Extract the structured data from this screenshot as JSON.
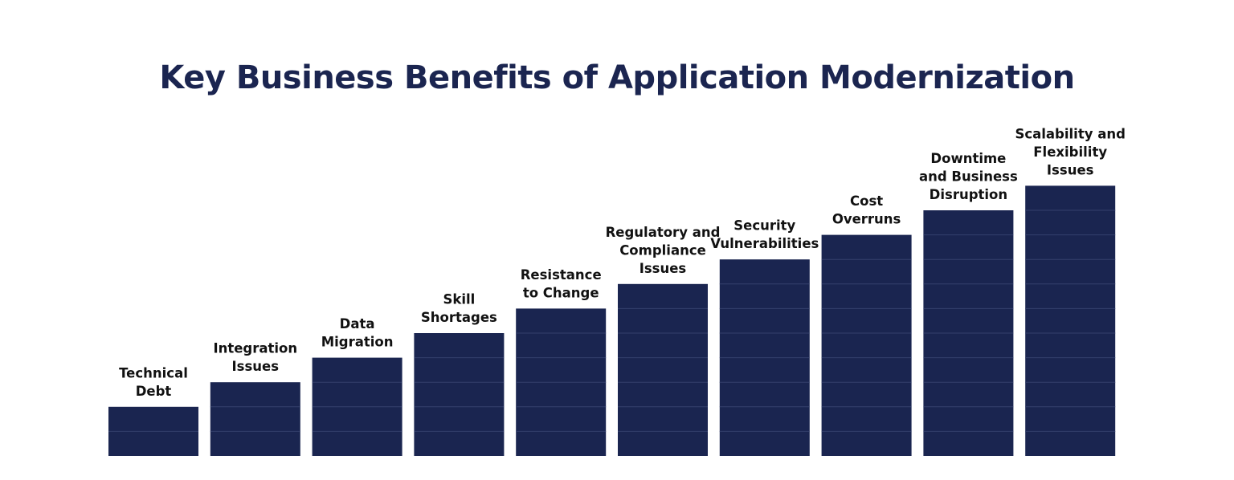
{
  "chart_data": {
    "type": "bar",
    "title": "Key Business Benefits of Application Modernization",
    "categories": [
      [
        "Technical",
        "Debt"
      ],
      [
        "Integration",
        "Issues"
      ],
      [
        "Data",
        "Migration"
      ],
      [
        "Skill",
        "Shortages"
      ],
      [
        "Resistance",
        "to Change"
      ],
      [
        "Regulatory and",
        "Compliance",
        "Issues"
      ],
      [
        "Security",
        "Vulnerabilities"
      ],
      [
        "Cost",
        "Overruns"
      ],
      [
        "Downtime",
        "and Business",
        "Disruption"
      ],
      [
        "Scalability and",
        "Flexibility",
        "Issues"
      ]
    ],
    "values": [
      2,
      3,
      4,
      5,
      6,
      7,
      8,
      9,
      10,
      11
    ],
    "xlabel": "",
    "ylabel": "",
    "grid": false,
    "legend": "none",
    "colors": {
      "bar": "#1a2550",
      "segment_line": "#34406c",
      "title": "#1b2550",
      "label": "#111111"
    }
  }
}
